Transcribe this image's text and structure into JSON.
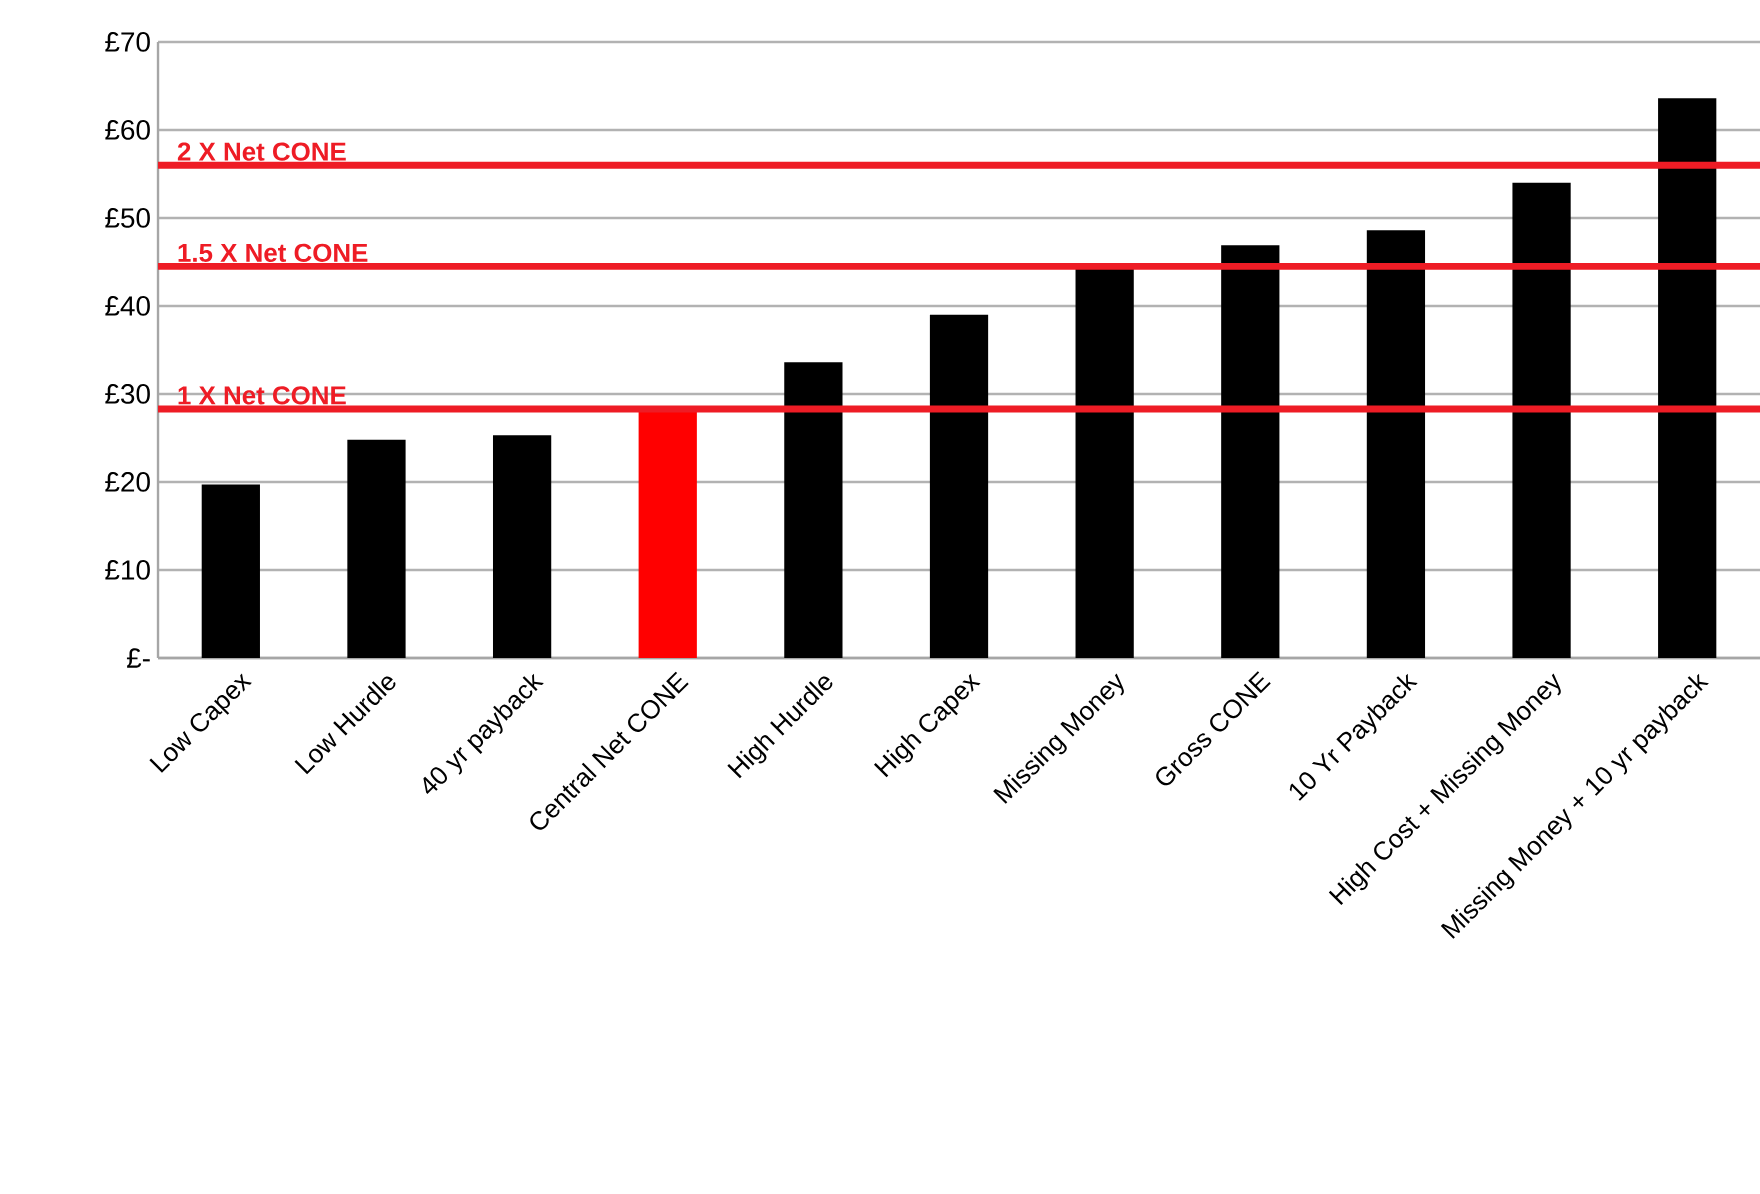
{
  "chart_data": {
    "type": "bar",
    "categories": [
      "Low Capex",
      "Low Hurdle",
      "40 yr payback",
      "Central Net CONE",
      "High Hurdle",
      "High Capex",
      "Missing Money",
      "Gross  CONE",
      "10 Yr Payback",
      "High Cost + Missing Money",
      "Missing Money + 10 yr payback"
    ],
    "values": [
      19.7,
      24.8,
      25.3,
      28.3,
      33.6,
      39.0,
      44.2,
      46.9,
      48.6,
      54.0,
      63.6
    ],
    "colors": [
      "#000000",
      "#000000",
      "#000000",
      "#ff0000",
      "#000000",
      "#000000",
      "#000000",
      "#000000",
      "#000000",
      "#000000",
      "#000000"
    ],
    "ylim": [
      0,
      70
    ],
    "yticks": [
      {
        "value": 0,
        "label": "£-"
      },
      {
        "value": 10,
        "label": "£10"
      },
      {
        "value": 20,
        "label": "£20"
      },
      {
        "value": 30,
        "label": "£30"
      },
      {
        "value": 40,
        "label": "£40"
      },
      {
        "value": 50,
        "label": "£50"
      },
      {
        "value": 60,
        "label": "£60"
      },
      {
        "value": 70,
        "label": "£70"
      }
    ],
    "grid": "y",
    "ref_lines": [
      {
        "axis": "y",
        "value": 56.0,
        "label": "2 X Net CONE",
        "color": "#ee1c25"
      },
      {
        "axis": "y",
        "value": 44.5,
        "label": "1.5 X Net CONE",
        "color": "#ee1c25"
      },
      {
        "axis": "y",
        "value": 28.3,
        "label": "1 X Net CONE",
        "color": "#ee1c25"
      }
    ]
  }
}
